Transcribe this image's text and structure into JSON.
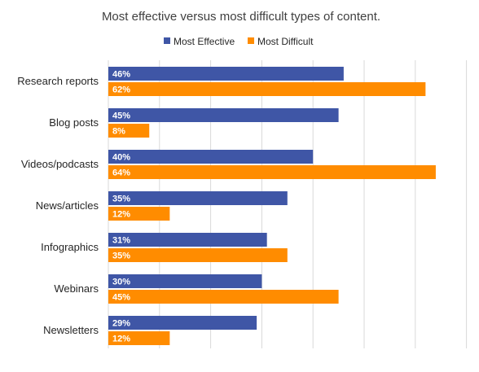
{
  "chart_data": {
    "type": "bar",
    "orientation": "horizontal",
    "title": "Most effective versus most difficult types of content.",
    "categories": [
      "Research reports",
      "Blog posts",
      "Videos/podcasts",
      "News/articles",
      "Infographics",
      "Webinars",
      "Newsletters"
    ],
    "series": [
      {
        "name": "Most Effective",
        "color": "#3F56A6",
        "values": [
          46,
          45,
          40,
          35,
          31,
          30,
          29
        ],
        "labels": [
          "46%",
          "45%",
          "40%",
          "35%",
          "31%",
          "30%",
          "29%"
        ]
      },
      {
        "name": "Most Difficult",
        "color": "#FF8C00",
        "values": [
          62,
          8,
          64,
          12,
          35,
          45,
          12
        ],
        "labels": [
          "62%",
          "8%",
          "64%",
          "12%",
          "35%",
          "45%",
          "12%"
        ]
      }
    ],
    "xlim": [
      0,
      70
    ],
    "grid": true,
    "legend": "top"
  }
}
